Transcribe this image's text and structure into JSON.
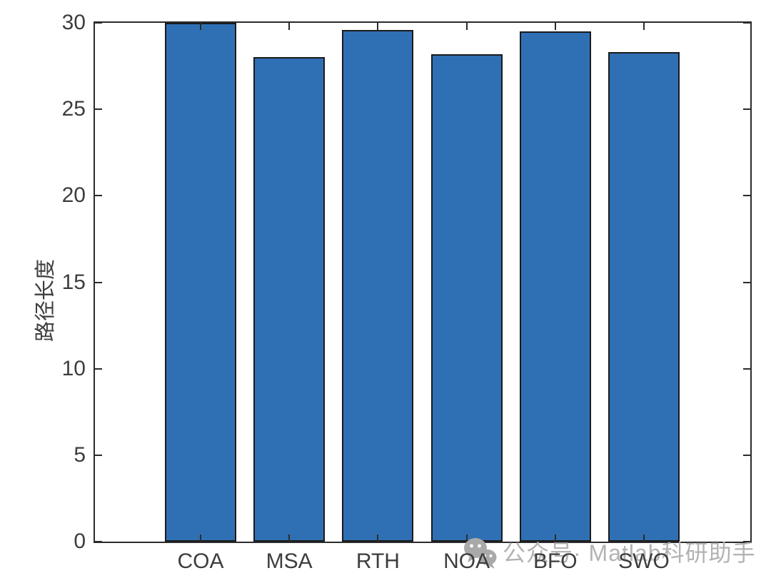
{
  "chart_data": {
    "type": "bar",
    "title": "",
    "xlabel": "",
    "ylabel": "路径长度",
    "categories": [
      "COA",
      "MSA",
      "RTH",
      "NOA",
      "BFO",
      "SWO"
    ],
    "values": [
      30,
      28.0,
      29.6,
      28.2,
      29.5,
      28.3
    ],
    "ylim": [
      0,
      30
    ],
    "yticks": [
      0,
      5,
      10,
      15,
      20,
      25,
      30
    ],
    "grid": false,
    "legend": null,
    "bar_color": "#2f70b5",
    "bar_edge_color": "#1a1a1a",
    "axis_color": "#2b2b2b",
    "tick_label_color": "#3d3d3d",
    "tick_direction": "in",
    "box": true
  },
  "watermark": {
    "text": "公众号· Matlab科研助手",
    "icon": "wechat-icon",
    "color": "#b3b3b3"
  }
}
